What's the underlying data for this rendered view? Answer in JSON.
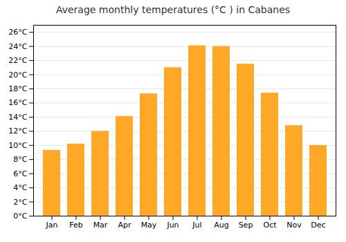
{
  "chart_data": {
    "type": "bar",
    "title": "Average monthly temperatures (°C ) in Cabanes",
    "categories": [
      "Jan",
      "Feb",
      "Mar",
      "Apr",
      "May",
      "Jun",
      "Jul",
      "Aug",
      "Sep",
      "Oct",
      "Nov",
      "Dec"
    ],
    "values": [
      9.3,
      10.2,
      12.0,
      14.1,
      17.3,
      21.0,
      24.1,
      24.0,
      21.5,
      17.4,
      12.8,
      10.0
    ],
    "color": "#FFA726",
    "ylim": [
      0,
      27
    ],
    "yticks": [
      {
        "value": 0,
        "label": "0°C"
      },
      {
        "value": 2,
        "label": "2°C"
      },
      {
        "value": 4,
        "label": "4°C"
      },
      {
        "value": 6,
        "label": "6°C"
      },
      {
        "value": 8,
        "label": "8°C"
      },
      {
        "value": 10,
        "label": "10°C"
      },
      {
        "value": 12,
        "label": "12°C"
      },
      {
        "value": 14,
        "label": "14°C"
      },
      {
        "value": 16,
        "label": "16°C"
      },
      {
        "value": 18,
        "label": "18°C"
      },
      {
        "value": 20,
        "label": "20°C"
      },
      {
        "value": 22,
        "label": "22°C"
      },
      {
        "value": 24,
        "label": "24°C"
      },
      {
        "value": 26,
        "label": "26°C"
      }
    ],
    "grid": true
  }
}
